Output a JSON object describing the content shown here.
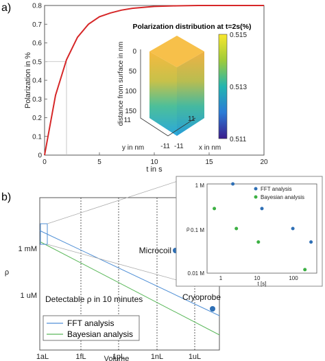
{
  "panel_a": {
    "label": "a)",
    "chart_data": {
      "type": "line",
      "series": [
        {
          "x": [
            0,
            1,
            2,
            3,
            4,
            5,
            6,
            7,
            8,
            10,
            12,
            14,
            16,
            18,
            20
          ],
          "y": [
            0,
            0.32,
            0.51,
            0.63,
            0.7,
            0.74,
            0.76,
            0.775,
            0.785,
            0.795,
            0.798,
            0.8,
            0.8,
            0.8,
            0.8
          ],
          "color": "#d62728"
        }
      ],
      "xlabel": "t in s",
      "ylabel": "Polarization in %",
      "xlim": [
        0,
        20
      ],
      "ylim": [
        0,
        0.8
      ],
      "xticks": [
        "0",
        "5",
        "10",
        "15",
        "20"
      ],
      "yticks": [
        "0",
        "0.1",
        "0.2",
        "0.3",
        "0.4",
        "0.5",
        "0.6",
        "0.7",
        "0.8"
      ],
      "annotation": {
        "x": 2,
        "y": 0.5
      }
    },
    "inset": {
      "title": "Polarization distribution at t=2s(%)",
      "zlabel": "distance from surface in nm",
      "zticks": [
        "0",
        "50",
        "100",
        "150"
      ],
      "xlabel": "x in nm",
      "ylabel": "y in nm",
      "xticks": [
        "11",
        "-11"
      ],
      "yticks": [
        "11",
        "-11"
      ],
      "colorbar_ticks": [
        "0.515",
        "0.513",
        "0.511"
      ]
    }
  },
  "panel_b": {
    "label": "b)",
    "chart_data": {
      "type": "line",
      "xlabel": "Volume",
      "ylabel": "ρ",
      "xticks": [
        "1aL",
        "1fL",
        "1pL",
        "1nL",
        "1uL"
      ],
      "yticks": [
        "1 mM",
        "1 uM"
      ],
      "series": [
        {
          "name": "FFT analysis",
          "color": "#4f8fd6"
        },
        {
          "name": "Bayesian analysis",
          "color": "#5bb85b"
        }
      ],
      "points": [
        {
          "name": "Microcoil",
          "color": "#2e6fb5"
        },
        {
          "name": "Cryoprobe",
          "color": "#2e6fb5"
        }
      ],
      "annotation": "Detectable ρ in 10 minutes"
    },
    "inset": {
      "chart_data": {
        "type": "scatter",
        "xlabel": "t [s]",
        "ylabel": "ρ",
        "xticks": [
          "1",
          "10",
          "100"
        ],
        "yticks": [
          "1 M",
          "0.1 M",
          "0.01 M"
        ],
        "series": [
          {
            "name": "FFT analysis",
            "color": "#2e6fb5",
            "x": [
              1.6,
              10,
              70,
              220
            ],
            "y": [
              1.0,
              0.28,
              0.1,
              0.05
            ]
          },
          {
            "name": "Bayesian analysis",
            "color": "#3cb043",
            "x": [
              0.5,
              2,
              8,
              150
            ],
            "y": [
              0.28,
              0.1,
              0.05,
              0.012
            ]
          }
        ]
      }
    }
  }
}
